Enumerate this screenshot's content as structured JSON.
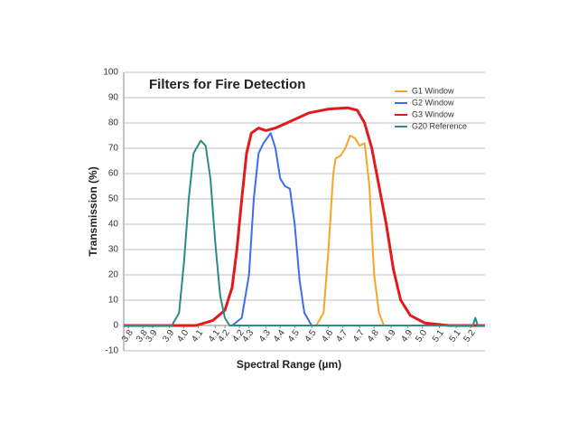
{
  "chart_data": {
    "type": "line",
    "title": "Filters for Fire Detection",
    "x_label": "Spectral Range (µm)",
    "y_label": "Transmission (%)",
    "xlim": [
      3.75,
      5.25
    ],
    "ylim": [
      -10,
      100
    ],
    "yticks": [
      -10,
      0,
      10,
      20,
      30,
      40,
      50,
      60,
      70,
      80,
      90,
      100
    ],
    "xticks": [
      {
        "value": 3.77,
        "label": "3.8"
      },
      {
        "value": 3.83,
        "label": "3.8"
      },
      {
        "value": 3.87,
        "label": "3.9"
      },
      {
        "value": 3.94,
        "label": "3.9"
      },
      {
        "value": 4.0,
        "label": "4.0"
      },
      {
        "value": 4.06,
        "label": "4.1"
      },
      {
        "value": 4.13,
        "label": "4.1"
      },
      {
        "value": 4.17,
        "label": "4.2"
      },
      {
        "value": 4.23,
        "label": "4.2"
      },
      {
        "value": 4.27,
        "label": "4.3"
      },
      {
        "value": 4.34,
        "label": "4.3"
      },
      {
        "value": 4.4,
        "label": "4.4"
      },
      {
        "value": 4.46,
        "label": "4.5"
      },
      {
        "value": 4.53,
        "label": "4.5"
      },
      {
        "value": 4.6,
        "label": "4.6"
      },
      {
        "value": 4.66,
        "label": "4.7"
      },
      {
        "value": 4.73,
        "label": "4.7"
      },
      {
        "value": 4.79,
        "label": "4.8"
      },
      {
        "value": 4.86,
        "label": "4.9"
      },
      {
        "value": 4.93,
        "label": "4.9"
      },
      {
        "value": 4.99,
        "label": "5.0"
      },
      {
        "value": 5.06,
        "label": "5.1"
      },
      {
        "value": 5.13,
        "label": "5.1"
      },
      {
        "value": 5.19,
        "label": "5.2"
      }
    ],
    "grid": true,
    "legend": "top-right",
    "series": [
      {
        "name": "G1 Window",
        "color": "#f5a623",
        "x": [
          4.55,
          4.58,
          4.6,
          4.62,
          4.63,
          4.65,
          4.67,
          4.69,
          4.71,
          4.73,
          4.75,
          4.77,
          4.79,
          4.81,
          4.83
        ],
        "values": [
          0,
          5,
          30,
          60,
          66,
          67,
          70,
          75,
          74,
          71,
          72,
          55,
          20,
          5,
          0
        ]
      },
      {
        "name": "G2 Window",
        "color": "#3b6df0",
        "x": [
          4.2,
          4.24,
          4.27,
          4.29,
          4.31,
          4.33,
          4.36,
          4.38,
          4.4,
          4.42,
          4.44,
          4.46,
          4.48,
          4.5,
          4.53
        ],
        "values": [
          0,
          3,
          20,
          50,
          68,
          72,
          76,
          70,
          58,
          55,
          54,
          40,
          18,
          5,
          0
        ]
      },
      {
        "name": "G3 Window",
        "color": "#e31a1c",
        "x": [
          3.75,
          4.05,
          4.12,
          4.17,
          4.2,
          4.22,
          4.24,
          4.26,
          4.28,
          4.31,
          4.34,
          4.38,
          4.45,
          4.52,
          4.6,
          4.68,
          4.72,
          4.75,
          4.78,
          4.81,
          4.84,
          4.87,
          4.9,
          4.94,
          5.0,
          5.1,
          5.25
        ],
        "values": [
          0,
          0,
          2,
          6,
          15,
          30,
          50,
          68,
          76,
          78,
          77,
          78,
          81,
          84,
          85.5,
          86,
          85,
          80,
          70,
          55,
          40,
          22,
          10,
          4,
          1,
          0,
          0
        ]
      },
      {
        "name": "G20 Reference",
        "color": "#2a8c82",
        "x": [
          3.75,
          3.95,
          3.98,
          4.0,
          4.02,
          4.04,
          4.07,
          4.09,
          4.11,
          4.13,
          4.15,
          4.17,
          4.19,
          4.5,
          5.2,
          5.21,
          5.22,
          5.25
        ],
        "values": [
          0,
          0,
          5,
          25,
          50,
          68,
          73,
          71,
          58,
          33,
          12,
          3,
          0,
          0,
          0,
          3,
          0,
          0
        ]
      }
    ]
  }
}
